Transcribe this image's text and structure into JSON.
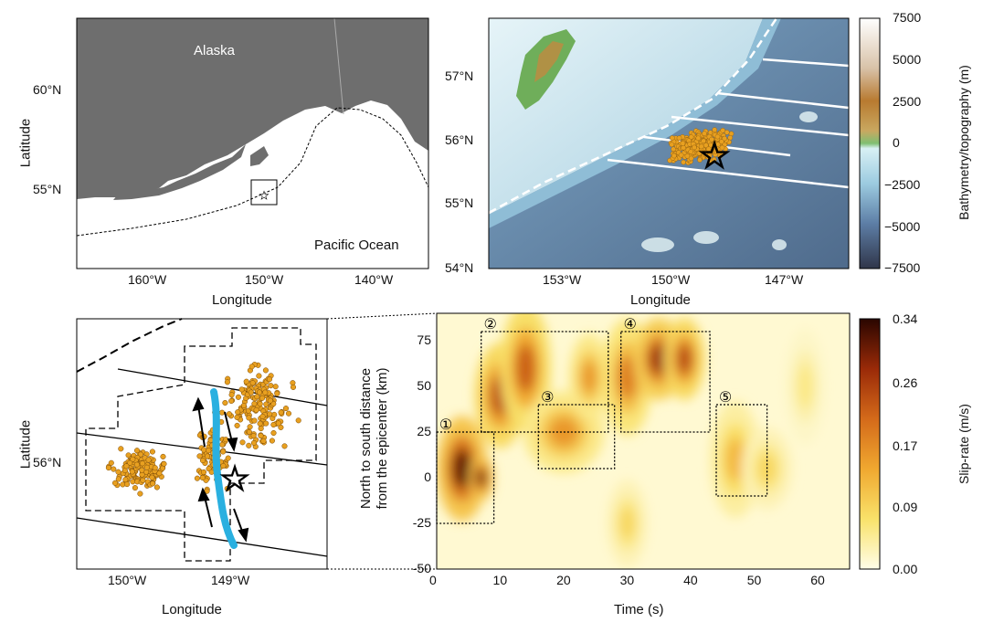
{
  "panel_a": {
    "region_label": "Alaska",
    "ocean_label": "Pacific Ocean",
    "xlabel": "Longitude",
    "ylabel": "Latitude",
    "x_ticks": [
      "160°W",
      "150°W",
      "140°W"
    ],
    "y_ticks": [
      "60°N",
      "55°N"
    ],
    "colors": {
      "land": "#6e6e6e",
      "water": "#ffffff"
    }
  },
  "panel_b": {
    "xlabel": "Longitude",
    "x_ticks": [
      "153°W",
      "150°W",
      "147°W"
    ],
    "y_ticks": [
      "57°N",
      "56°N",
      "55°N",
      "54°N"
    ],
    "colorbar": {
      "label": "Bathymetry/topography  (m)",
      "ticks": [
        "7500",
        "5000",
        "2500",
        "0",
        "−2500",
        "−5000",
        "−7500"
      ],
      "colors": [
        "#ffffff",
        "#c8a070",
        "#b06a20",
        "#7fbf72",
        "#bfe6f0",
        "#5d8fbf",
        "#3d4a63"
      ]
    }
  },
  "panel_c": {
    "xlabel": "Longitude",
    "ylabel": "Latitude",
    "x_ticks": [
      "150°W",
      "149°W"
    ],
    "y_ticks": [
      "56°N"
    ],
    "colors": {
      "aftershock": "#e8a020",
      "slip": "#2ab0e0"
    }
  },
  "chart_data": {
    "type": "heatmap",
    "xlabel": "Time (s)",
    "ylabel": "North to south distance from the epicenter (km)",
    "ylabel_lines": [
      "North to south distance",
      "from the epicenter (km)"
    ],
    "xlim": [
      0,
      65
    ],
    "ylim": [
      -50,
      90
    ],
    "x_ticks": [
      0,
      10,
      20,
      30,
      40,
      50,
      60
    ],
    "y_ticks": [
      75,
      50,
      25,
      0,
      -25,
      -50
    ],
    "colorbar": {
      "label": "Slip-rate (m/s)",
      "ticks": [
        "0.34",
        "0.26",
        "0.17",
        "0.09",
        "0.00"
      ],
      "range": [
        0,
        0.34
      ]
    },
    "patches": [
      {
        "t": 4,
        "d": 5,
        "rt": 2.5,
        "rd": 18,
        "v": 0.34
      },
      {
        "t": 7,
        "d": 0,
        "rt": 1.2,
        "rd": 8,
        "v": 0.34
      },
      {
        "t": 10,
        "d": 45,
        "rt": 2.5,
        "rd": 18,
        "v": 0.26
      },
      {
        "t": 14,
        "d": 60,
        "rt": 2.5,
        "rd": 22,
        "v": 0.24
      },
      {
        "t": 20,
        "d": 25,
        "rt": 4,
        "rd": 14,
        "v": 0.17
      },
      {
        "t": 24,
        "d": 55,
        "rt": 2,
        "rd": 15,
        "v": 0.17
      },
      {
        "t": 30,
        "d": 55,
        "rt": 2.5,
        "rd": 20,
        "v": 0.2
      },
      {
        "t": 35,
        "d": 65,
        "rt": 2.5,
        "rd": 14,
        "v": 0.3
      },
      {
        "t": 39,
        "d": 65,
        "rt": 2,
        "rd": 14,
        "v": 0.26
      },
      {
        "t": 47,
        "d": 10,
        "rt": 2.5,
        "rd": 20,
        "v": 0.13
      },
      {
        "t": 52,
        "d": 5,
        "rt": 2.5,
        "rd": 14,
        "v": 0.09
      },
      {
        "t": 58,
        "d": 50,
        "rt": 2,
        "rd": 20,
        "v": 0.06
      },
      {
        "t": 30,
        "d": -25,
        "rt": 2,
        "rd": 15,
        "v": 0.09
      }
    ],
    "boxes": [
      {
        "label": "①",
        "x": [
          0,
          9
        ],
        "y": [
          -25,
          25
        ]
      },
      {
        "label": "②",
        "x": [
          7,
          27
        ],
        "y": [
          25,
          80
        ]
      },
      {
        "label": "③",
        "x": [
          16,
          28
        ],
        "y": [
          5,
          40
        ]
      },
      {
        "label": "④",
        "x": [
          29,
          43
        ],
        "y": [
          25,
          80
        ]
      },
      {
        "label": "⑤",
        "x": [
          44,
          52
        ],
        "y": [
          -10,
          40
        ]
      }
    ]
  }
}
